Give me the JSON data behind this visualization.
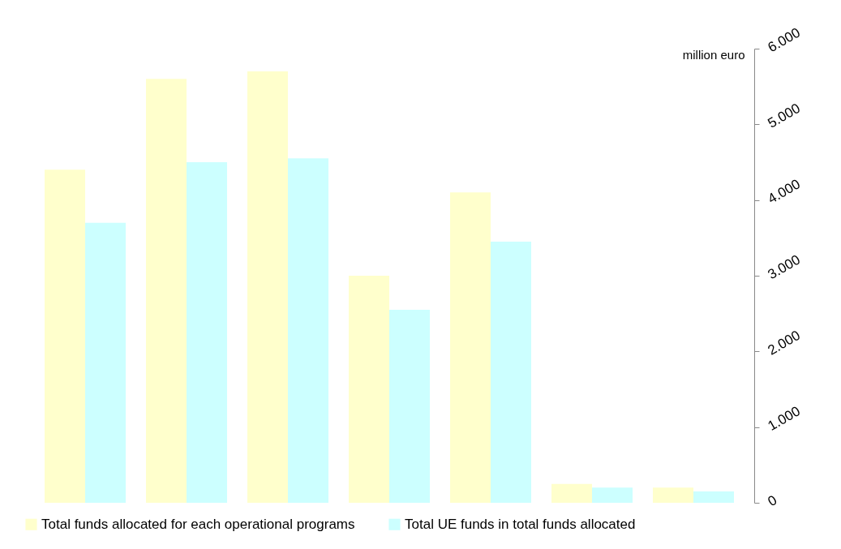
{
  "chart_data": {
    "type": "bar",
    "ylabel": "million euro",
    "categories": [
      null,
      null,
      null,
      null,
      null,
      null,
      null
    ],
    "series": [
      {
        "name": "Total funds allocated for each operational programs",
        "color": "#ffffcc",
        "values": [
          4400,
          5600,
          5700,
          3000,
          4100,
          250,
          200
        ]
      },
      {
        "name": "Total UE funds in total funds allocated",
        "color": "#ccffff",
        "values": [
          3700,
          4500,
          4550,
          2550,
          3450,
          200,
          150
        ]
      }
    ],
    "ylim": [
      0,
      6000
    ],
    "yticks": [
      0,
      {
        "value": 1000,
        "label": "1.000"
      },
      {
        "value": 2000,
        "label": "2.000"
      },
      {
        "value": 3000,
        "label": "3.000"
      },
      {
        "value": 4000,
        "label": "4.000"
      },
      {
        "value": 5000,
        "label": "5.000"
      },
      {
        "value": 6000,
        "label": "6.000"
      }
    ],
    "tick_labels": "y",
    "grid": false,
    "legend": "bottom"
  }
}
